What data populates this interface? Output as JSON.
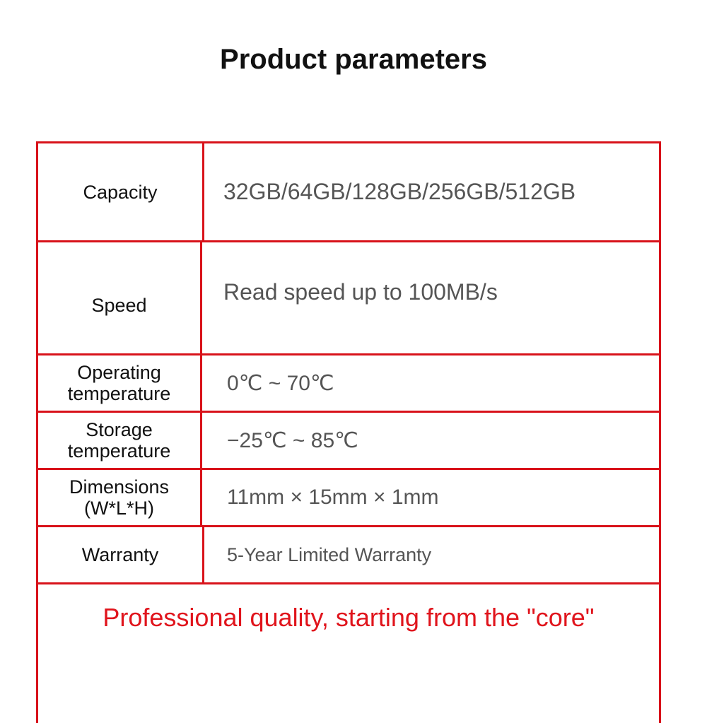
{
  "title": "Product parameters",
  "rows": [
    {
      "label": "Capacity",
      "value": "32GB/64GB/128GB/256GB/512GB"
    },
    {
      "label": "Speed",
      "value": "Read speed up to 100MB/s"
    },
    {
      "label": "Operating temperature",
      "value": "0℃ ~ 70℃"
    },
    {
      "label": "Storage temperature",
      "value": "−25℃ ~ 85℃"
    },
    {
      "label": "Dimensions (W*L*H)",
      "value": "11mm × 15mm × 1mm"
    },
    {
      "label": "Warranty",
      "value": "5-Year Limited Warranty"
    }
  ],
  "footer": "Professional quality, starting from the \"core\"",
  "colors": {
    "border": "#d8121a",
    "footer_text": "#e0141c",
    "value_text": "#555555"
  }
}
